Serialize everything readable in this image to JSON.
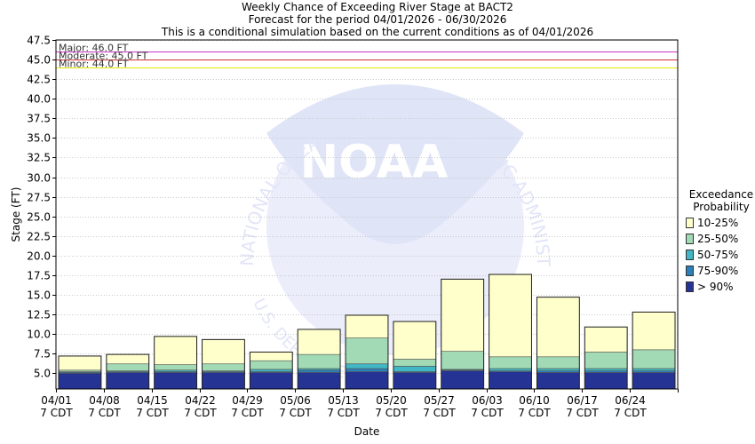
{
  "titles": [
    "Weekly Chance of Exceeding River Stage at BACT2",
    "Forecast for the period 04/01/2026 - 06/30/2026",
    "This is a conditional simulation based on the current conditions as of 04/01/2026"
  ],
  "watermark": {
    "arc_text": "NATIONAL OCEANIC AND ATMOSPHERIC ADMINISTRATION",
    "logo_text": "NOAA",
    "lower_text": "U.S. DEPARTMENT OF COMMERCE"
  },
  "colors": {
    "p10_25": "#ffffcc",
    "p25_50": "#a1dab4",
    "p50_75": "#41b6c4",
    "p75_90": "#2c7fb8",
    "p90": "#253494",
    "major": "#cc33cc",
    "moderate": "#cc3333",
    "minor": "#e6e600"
  },
  "legend": {
    "title_line1": "Exceedance",
    "title_line2": "Probability",
    "items": [
      {
        "label": "10-25%",
        "color": "#ffffcc"
      },
      {
        "label": "25-50%",
        "color": "#a1dab4"
      },
      {
        "label": "50-75%",
        "color": "#41b6c4"
      },
      {
        "label": "75-90%",
        "color": "#2c7fb8"
      },
      {
        "label": "> 90%",
        "color": "#253494"
      }
    ]
  },
  "chart_data": {
    "type": "bar",
    "title": "Weekly Chance of Exceeding River Stage at BACT2",
    "xlabel": "Date",
    "ylabel": "Stage (FT)",
    "ylim": [
      3.0,
      47.5
    ],
    "yticks": [
      5.0,
      7.5,
      10.0,
      12.5,
      15.0,
      17.5,
      20.0,
      22.5,
      25.0,
      27.5,
      30.0,
      32.5,
      35.0,
      37.5,
      40.0,
      42.5,
      45.0,
      47.5
    ],
    "ytick_labels": [
      "5.0",
      "7.5",
      "10.0",
      "12.5",
      "15.0",
      "17.5",
      "20.0",
      "22.5",
      "25.0",
      "27.5",
      "30.0",
      "32.5",
      "35.0",
      "37.5",
      "40.0",
      "42.5",
      "45.0",
      "47.5"
    ],
    "categories": [
      "04/01",
      "04/08",
      "04/15",
      "04/22",
      "04/29",
      "05/06",
      "05/13",
      "05/20",
      "05/27",
      "06/03",
      "06/10",
      "06/17",
      "06/24"
    ],
    "category_sublabel": "7 CDT",
    "grid": true,
    "legend_position": "right",
    "thresholds": [
      {
        "name": "Major",
        "label": "Major: 46.0 FT",
        "value": 46.0
      },
      {
        "name": "Moderate",
        "label": "Moderate: 45.0 FT",
        "value": 45.0
      },
      {
        "name": "Minor",
        "label": "Minor: 44.0 FT",
        "value": 44.0
      }
    ],
    "series": [
      {
        "name": "> 90%",
        "values": [
          3.0,
          3.0,
          3.0,
          3.0,
          3.0,
          3.0,
          3.0,
          3.0,
          3.0,
          3.0,
          3.0,
          3.0,
          3.0
        ]
      },
      {
        "name": "75-90%",
        "values": [
          5.0,
          5.1,
          5.1,
          5.1,
          5.1,
          5.1,
          5.2,
          5.1,
          5.3,
          5.2,
          5.1,
          5.1,
          5.1
        ]
      },
      {
        "name": "50-75%",
        "values": [
          5.1,
          5.2,
          5.2,
          5.2,
          5.2,
          5.4,
          5.6,
          5.2,
          5.4,
          5.3,
          5.3,
          5.3,
          5.3
        ]
      },
      {
        "name": "25-50%",
        "values": [
          5.2,
          5.3,
          5.4,
          5.3,
          5.5,
          5.6,
          6.2,
          5.9,
          5.5,
          5.6,
          5.6,
          5.6,
          5.6
        ]
      },
      {
        "name": "10-25%",
        "values": [
          5.4,
          6.2,
          6.1,
          6.2,
          6.6,
          7.4,
          9.5,
          6.8,
          7.8,
          7.1,
          7.1,
          7.7,
          8.0
        ]
      },
      {
        "name": "top",
        "values": [
          7.2,
          7.4,
          9.7,
          9.3,
          7.7,
          10.6,
          12.4,
          11.6,
          17.0,
          17.6,
          14.7,
          10.9,
          12.8
        ]
      }
    ]
  }
}
